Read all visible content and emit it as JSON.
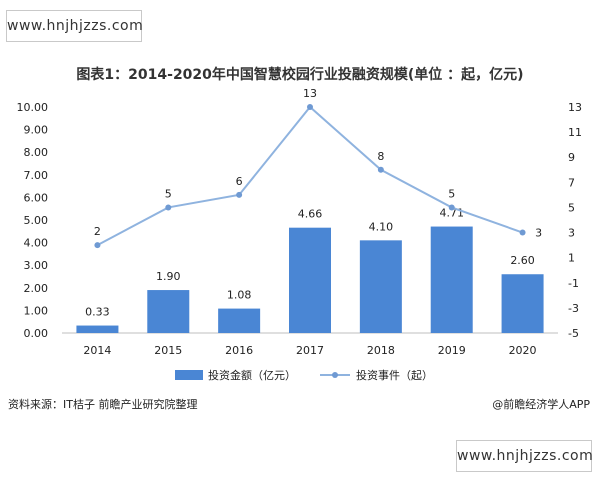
{
  "watermark": {
    "top": "www.hnjhjzzs.com",
    "bottom": "www.hnjhjzzs.com"
  },
  "chart_data": {
    "type": "bar",
    "title": "图表1：2014-2020年中国智慧校园行业投融资规模(单位 ：起，亿元)",
    "categories": [
      "2014",
      "2015",
      "2016",
      "2017",
      "2018",
      "2019",
      "2020"
    ],
    "series": [
      {
        "name": "投资金额（亿元）",
        "type": "bar",
        "axis": "left",
        "color": "#4a86d4",
        "values": [
          0.33,
          1.9,
          1.08,
          4.66,
          4.1,
          4.71,
          2.6
        ],
        "labels": [
          "0.33",
          "1.90",
          "1.08",
          "4.66",
          "4.10",
          "4.71",
          "2.60"
        ]
      },
      {
        "name": "投资事件（起）",
        "type": "line",
        "axis": "right",
        "color": "#8fb3df",
        "values": [
          2,
          5,
          6,
          13,
          8,
          5,
          3
        ],
        "labels": [
          "2",
          "5",
          "6",
          "13",
          "8",
          "5",
          "3"
        ]
      }
    ],
    "y_left": {
      "min": 0,
      "max": 10,
      "ticks": [
        "0.00",
        "1.00",
        "2.00",
        "3.00",
        "4.00",
        "5.00",
        "6.00",
        "7.00",
        "8.00",
        "9.00",
        "10.00"
      ]
    },
    "y_right": {
      "min": -5,
      "max": 13,
      "ticks": [
        "-5",
        "-3",
        "-1",
        "1",
        "3",
        "5",
        "7",
        "9",
        "11",
        "13"
      ]
    },
    "legend": "bottom"
  },
  "footer": {
    "source": "资料来源：IT桔子 前瞻产业研究院整理",
    "credit": "@前瞻经济学人APP"
  }
}
